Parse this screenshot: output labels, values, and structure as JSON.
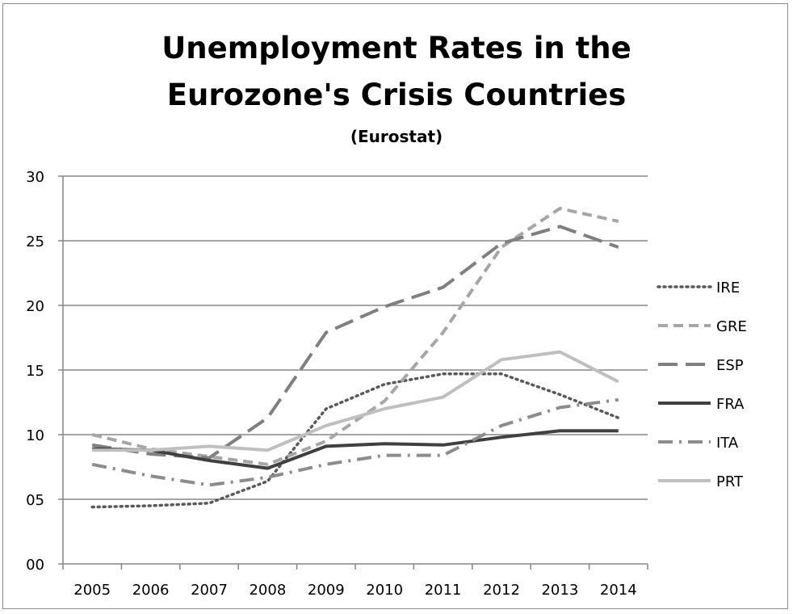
{
  "chart_data": {
    "type": "line",
    "title": "Unemployment Rates in the Eurozone's Crisis Countries",
    "subtitle": "(Eurostat)",
    "x": [
      "2005",
      "2006",
      "2007",
      "2008",
      "2009",
      "2010",
      "2011",
      "2012",
      "2013",
      "2014"
    ],
    "ylim": [
      0,
      30
    ],
    "yticks": [
      "00",
      "05",
      "10",
      "15",
      "20",
      "25",
      "30"
    ],
    "grid": true,
    "legend_position": "right",
    "series": [
      {
        "name": "IRE",
        "values": [
          4.4,
          4.5,
          4.7,
          6.4,
          12.0,
          13.9,
          14.7,
          14.7,
          13.1,
          11.3
        ],
        "color": "#595959",
        "style": "dotted"
      },
      {
        "name": "GRE",
        "values": [
          10.0,
          8.9,
          8.3,
          7.7,
          9.5,
          12.6,
          17.9,
          24.5,
          27.5,
          26.5
        ],
        "color": "#a6a6a6",
        "style": "dashed"
      },
      {
        "name": "ESP",
        "values": [
          9.2,
          8.5,
          8.2,
          11.3,
          17.9,
          19.9,
          21.4,
          24.8,
          26.1,
          24.5
        ],
        "color": "#7f7f7f",
        "style": "longdash"
      },
      {
        "name": "FRA",
        "values": [
          8.9,
          8.8,
          8.0,
          7.4,
          9.1,
          9.3,
          9.2,
          9.8,
          10.3,
          10.3
        ],
        "color": "#404040",
        "style": "solid"
      },
      {
        "name": "ITA",
        "values": [
          7.7,
          6.8,
          6.1,
          6.7,
          7.7,
          8.4,
          8.4,
          10.7,
          12.1,
          12.7
        ],
        "color": "#8c8c8c",
        "style": "dashdot"
      },
      {
        "name": "PRT",
        "values": [
          8.8,
          8.8,
          9.1,
          8.8,
          10.7,
          12.0,
          12.9,
          15.8,
          16.4,
          14.1
        ],
        "color": "#bfbfbf",
        "style": "solid"
      }
    ]
  }
}
